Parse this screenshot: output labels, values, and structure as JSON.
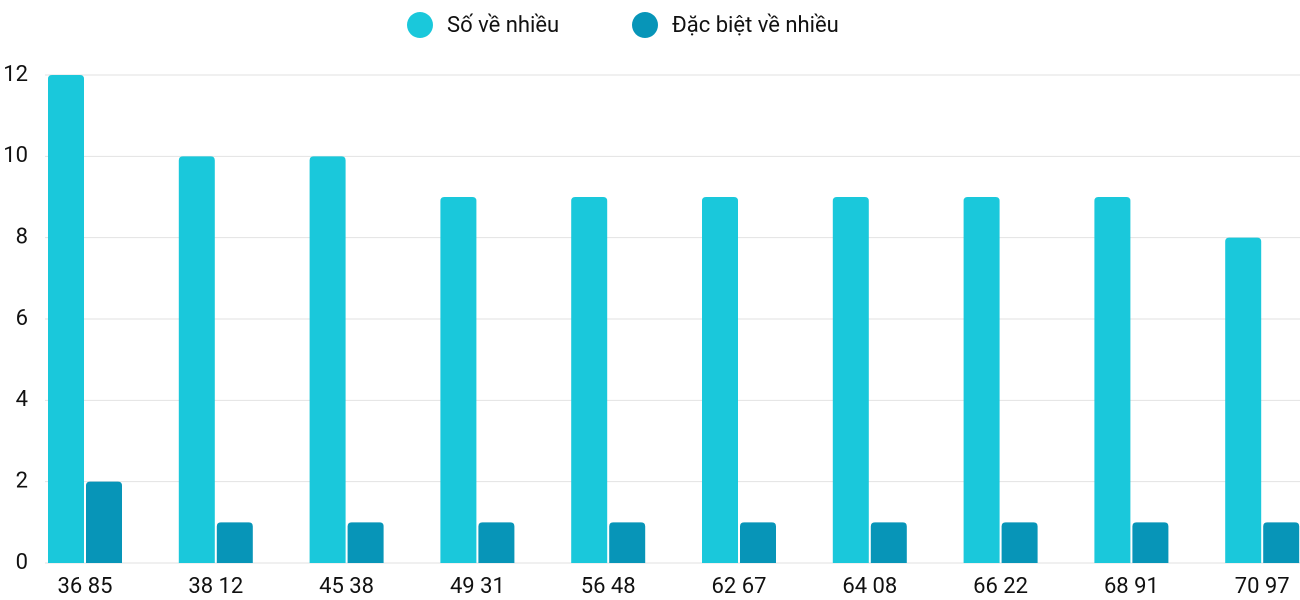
{
  "chart_data": {
    "type": "bar",
    "categories": [
      "36 85",
      "38 12",
      "45 38",
      "49 31",
      "56 48",
      "62 67",
      "64 08",
      "66 22",
      "68 91",
      "70 97"
    ],
    "series": [
      {
        "name": "Số về nhiều",
        "color": "#1ac8db",
        "values": [
          12,
          10,
          10,
          9,
          9,
          9,
          9,
          9,
          9,
          8
        ]
      },
      {
        "name": "Đặc biệt về nhiều",
        "color": "#0795b8",
        "values": [
          2,
          1,
          1,
          1,
          1,
          1,
          1,
          1,
          1,
          1
        ]
      }
    ],
    "ylim": [
      0,
      12
    ],
    "yticks": [
      0,
      2,
      4,
      6,
      8,
      10,
      12
    ],
    "grid": true,
    "legend": "top"
  }
}
